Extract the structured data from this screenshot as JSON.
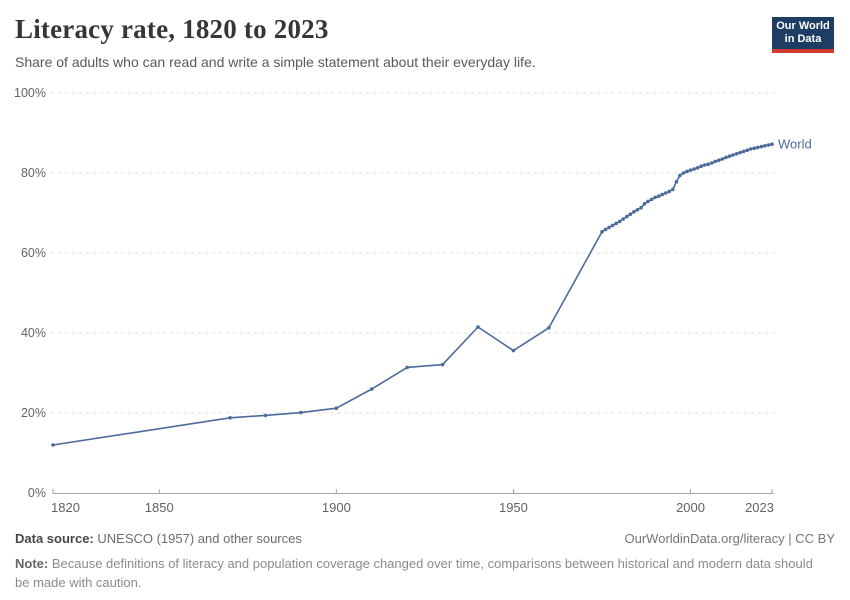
{
  "header": {
    "title": "Literacy rate, 1820 to 2023",
    "subtitle": "Share of adults who can read and write a simple statement about their everyday life.",
    "logo": {
      "line1": "Our World",
      "line2": "in Data",
      "bg_color": "#1d3d63",
      "bar_color": "#cf3a31",
      "text_color": "#ffffff"
    }
  },
  "chart_data": {
    "type": "line",
    "title": "Literacy rate, 1820 to 2023",
    "xlabel": "",
    "ylabel": "",
    "xlim": [
      1820,
      2023
    ],
    "ylim": [
      0,
      100
    ],
    "grid": "horizontal-dashed",
    "legend_position": "end-of-line",
    "xticks": [
      "1820",
      "1850",
      "1900",
      "1950",
      "2000",
      "2023"
    ],
    "xtick_years": [
      1820,
      1850,
      1900,
      1950,
      2000,
      2023
    ],
    "ytick_values": [
      0,
      20,
      40,
      60,
      80,
      100
    ],
    "ytick_labels": [
      "0%",
      "20%",
      "40%",
      "60%",
      "80%",
      "100%"
    ],
    "series": [
      {
        "name": "World",
        "color": "#4C6A9C",
        "points": [
          [
            1820,
            12.0
          ],
          [
            1870,
            18.8
          ],
          [
            1880,
            19.4
          ],
          [
            1890,
            20.1
          ],
          [
            1900,
            21.2
          ],
          [
            1910,
            26.0
          ],
          [
            1920,
            31.4
          ],
          [
            1930,
            32.1
          ],
          [
            1940,
            41.5
          ],
          [
            1950,
            35.6
          ],
          [
            1960,
            41.3
          ],
          [
            1975,
            65.3
          ],
          [
            1976,
            65.9
          ],
          [
            1977,
            66.4
          ],
          [
            1978,
            66.9
          ],
          [
            1979,
            67.4
          ],
          [
            1980,
            67.9
          ],
          [
            1981,
            68.5
          ],
          [
            1982,
            69.1
          ],
          [
            1983,
            69.7
          ],
          [
            1984,
            70.3
          ],
          [
            1985,
            70.8
          ],
          [
            1986,
            71.3
          ],
          [
            1987,
            72.3
          ],
          [
            1988,
            72.9
          ],
          [
            1989,
            73.4
          ],
          [
            1990,
            73.9
          ],
          [
            1991,
            74.2
          ],
          [
            1992,
            74.6
          ],
          [
            1993,
            75.0
          ],
          [
            1994,
            75.4
          ],
          [
            1995,
            75.9
          ],
          [
            1996,
            77.8
          ],
          [
            1997,
            79.4
          ],
          [
            1998,
            80.0
          ],
          [
            1999,
            80.4
          ],
          [
            2000,
            80.7
          ],
          [
            2001,
            81.0
          ],
          [
            2002,
            81.3
          ],
          [
            2003,
            81.7
          ],
          [
            2004,
            82.0
          ],
          [
            2005,
            82.2
          ],
          [
            2006,
            82.5
          ],
          [
            2007,
            82.9
          ],
          [
            2008,
            83.2
          ],
          [
            2009,
            83.5
          ],
          [
            2010,
            83.9
          ],
          [
            2011,
            84.2
          ],
          [
            2012,
            84.5
          ],
          [
            2013,
            84.8
          ],
          [
            2014,
            85.1
          ],
          [
            2015,
            85.4
          ],
          [
            2016,
            85.7
          ],
          [
            2017,
            86.0
          ],
          [
            2018,
            86.2
          ],
          [
            2019,
            86.4
          ],
          [
            2020,
            86.6
          ],
          [
            2021,
            86.8
          ],
          [
            2022,
            87.0
          ],
          [
            2023,
            87.2
          ]
        ]
      }
    ]
  },
  "footer": {
    "source_label": "Data source:",
    "source_text": "UNESCO (1957) and other sources",
    "link": "OurWorldinData.org/literacy | CC BY",
    "note_label": "Note:",
    "note_text": "Because definitions of literacy and population coverage changed over time, comparisons between historical and modern data should be made with caution."
  }
}
